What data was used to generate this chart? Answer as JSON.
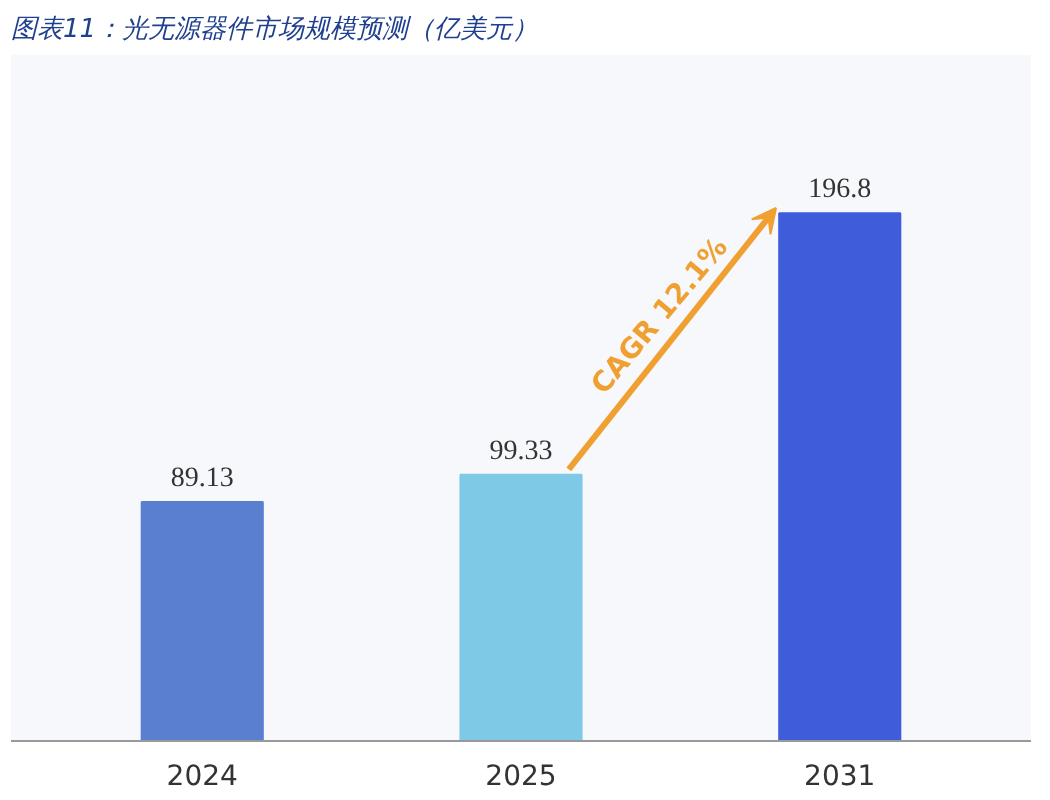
{
  "chart_data": {
    "type": "bar",
    "title": "图表11：光无源器件市场规模预测（亿美元）",
    "categories": [
      "2024",
      "2025",
      "2031"
    ],
    "values": [
      89.13,
      99.33,
      196.8
    ],
    "colors": [
      "#5a7fd1",
      "#7ec9e6",
      "#3f5ddb"
    ],
    "data_labels": true,
    "annotations": [
      "CAGR 12.1%"
    ]
  }
}
